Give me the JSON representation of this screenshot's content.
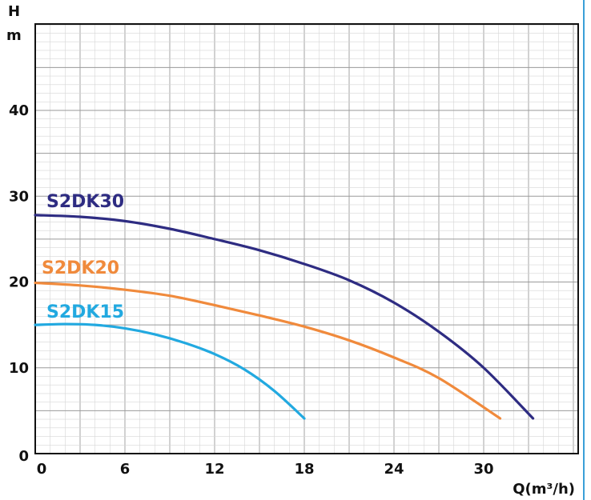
{
  "chart_data": {
    "type": "line",
    "title": "",
    "ylabel": "H",
    "yunit": "m",
    "xlabel": "Q(m³/h)",
    "xlim": [
      0,
      36
    ],
    "ylim": [
      0,
      50
    ],
    "xticks": [
      0,
      6,
      12,
      18,
      24,
      30
    ],
    "yticks": [
      0,
      10,
      20,
      30,
      40
    ],
    "grid": true,
    "legend": "inline-labels",
    "series": [
      {
        "name": "S2DK30",
        "color": "#2e2c82",
        "x": [
          0,
          3,
          6,
          9,
          12,
          15,
          18,
          21,
          24,
          27,
          30,
          33.3
        ],
        "y": [
          27.8,
          27.6,
          27.1,
          26.2,
          25.0,
          23.7,
          22.1,
          20.2,
          17.6,
          14.2,
          10.0,
          4.1
        ]
      },
      {
        "name": "S2DK20",
        "color": "#f08a3c",
        "x": [
          0,
          3,
          6,
          9,
          12,
          15,
          18,
          21,
          24,
          27,
          31.1
        ],
        "y": [
          19.9,
          19.6,
          19.1,
          18.4,
          17.3,
          16.1,
          14.8,
          13.2,
          11.2,
          8.8,
          4.1
        ]
      },
      {
        "name": "S2DK15",
        "color": "#22a9e0",
        "x": [
          0,
          2,
          4,
          6,
          8,
          10,
          12,
          14,
          16,
          18
        ],
        "y": [
          15.0,
          15.1,
          15.0,
          14.6,
          13.9,
          12.9,
          11.6,
          9.8,
          7.3,
          4.1
        ]
      }
    ]
  },
  "page": {
    "accent_strip_color": "#3a9fd8"
  }
}
